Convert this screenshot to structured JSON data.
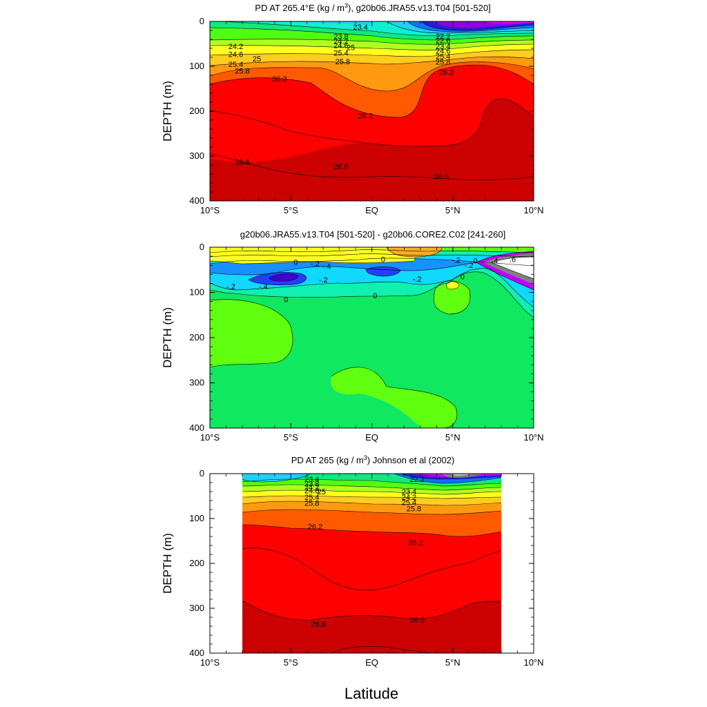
{
  "figure": {
    "xlabel": "Latitude"
  },
  "chart_data": [
    {
      "type": "heatmap",
      "title_main": "PD AT 265.4°E (kg / m",
      "title_sup": "3",
      "title_rest": "), g20b06.JRA55.v13.T04 [501-520]",
      "ylabel": "DEPTH (m)",
      "xlim": [
        -10,
        10
      ],
      "ylim": [
        400,
        0
      ],
      "xticks": [
        "10°S",
        "5°S",
        "EQ",
        "5°N",
        "10°N"
      ],
      "yticks": [
        "0",
        "100",
        "200",
        "300",
        "400"
      ],
      "contour_labels": [
        {
          "text": "23.4",
          "lat": -0.7,
          "depth": 12
        },
        {
          "text": "23.8",
          "lat": -1.9,
          "depth": 33
        },
        {
          "text": "24.2",
          "lat": -1.9,
          "depth": 44
        },
        {
          "text": "24.6",
          "lat": -1.9,
          "depth": 53
        },
        {
          "text": "25",
          "lat": -1.3,
          "depth": 58
        },
        {
          "text": "25.4",
          "lat": -1.9,
          "depth": 70
        },
        {
          "text": "25.8",
          "lat": -1.8,
          "depth": 89
        },
        {
          "text": "24.2",
          "lat": -8.4,
          "depth": 55
        },
        {
          "text": "24.6",
          "lat": -8.4,
          "depth": 73
        },
        {
          "text": "25",
          "lat": -7.1,
          "depth": 83
        },
        {
          "text": "25.4",
          "lat": -8.4,
          "depth": 95
        },
        {
          "text": "25.8",
          "lat": -8.0,
          "depth": 110
        },
        {
          "text": "26.2",
          "lat": -5.7,
          "depth": 128
        },
        {
          "text": "26.2",
          "lat": -0.4,
          "depth": 210
        },
        {
          "text": "26.2",
          "lat": 4.6,
          "depth": 113
        },
        {
          "text": "26.6",
          "lat": -8.0,
          "depth": 313
        },
        {
          "text": "26.6",
          "lat": -1.9,
          "depth": 323
        },
        {
          "text": "26.6",
          "lat": 4.3,
          "depth": 345
        },
        {
          "text": "22.2",
          "lat": 4.4,
          "depth": 33
        },
        {
          "text": "22.6",
          "lat": 4.4,
          "depth": 42
        },
        {
          "text": "23.4",
          "lat": 4.4,
          "depth": 55
        },
        {
          "text": "24.6",
          "lat": 4.4,
          "depth": 65
        },
        {
          "text": "25.4",
          "lat": 4.4,
          "depth": 78
        },
        {
          "text": "25.8",
          "lat": 4.4,
          "depth": 90
        }
      ],
      "density_levels": [
        22.2,
        22.6,
        23.0,
        23.4,
        23.8,
        24.2,
        24.6,
        25.0,
        25.4,
        25.8,
        26.2,
        26.6
      ],
      "fill_colors": [
        "#e000ff",
        "#9000e0",
        "#2020e0",
        "#1070ff",
        "#20d0ff",
        "#10f0d0",
        "#10e880",
        "#50ff10",
        "#b0ff20",
        "#ffff20",
        "#ffcc20",
        "#ff9a10",
        "#ff5a00",
        "#ff0000",
        "#cc0000"
      ]
    },
    {
      "type": "heatmap",
      "title_main": "g20b06.JRA55.v13.T04 [501-520] - g20b06.CORE2.C02 [241-260]",
      "ylabel": "DEPTH (m)",
      "xlim": [
        -10,
        10
      ],
      "ylim": [
        400,
        0
      ],
      "xticks": [
        "10°S",
        "5°S",
        "EQ",
        "5°N",
        "10°N"
      ],
      "yticks": [
        "0",
        "100",
        "200",
        "300",
        "400"
      ],
      "contour_labels": [
        {
          "text": "0",
          "lat": -4.7,
          "depth": 33
        },
        {
          "text": "-.2",
          "lat": -3.5,
          "depth": 36
        },
        {
          "text": "-.4",
          "lat": -2.8,
          "depth": 42
        },
        {
          "text": "0",
          "lat": 0.7,
          "depth": 27
        },
        {
          "text": "-.2",
          "lat": -8.7,
          "depth": 87
        },
        {
          "text": "-.4",
          "lat": -6.7,
          "depth": 87
        },
        {
          "text": "-.2",
          "lat": -3.0,
          "depth": 72
        },
        {
          "text": "0",
          "lat": -5.3,
          "depth": 115
        },
        {
          "text": "0",
          "lat": 0.2,
          "depth": 107
        },
        {
          "text": "-.2",
          "lat": 2.8,
          "depth": 70
        },
        {
          "text": "-.2",
          "lat": 5.2,
          "depth": 28
        },
        {
          "text": "0",
          "lat": 6.4,
          "depth": 30
        },
        {
          "text": "-.2",
          "lat": 6.0,
          "depth": 40
        },
        {
          "text": "0",
          "lat": 5.6,
          "depth": 65
        },
        {
          "text": ".4",
          "lat": 7.6,
          "depth": 30
        },
        {
          "text": ".6",
          "lat": 8.7,
          "depth": 27
        }
      ],
      "difference_levels": [
        -1.0,
        -0.8,
        -0.6,
        -0.4,
        -0.2,
        0,
        0.2,
        0.4,
        0.6
      ],
      "fill_colors": [
        "#ffffff",
        "#808080",
        "#c000ff",
        "#4000d0",
        "#2040ff",
        "#1890ff",
        "#10d8ff",
        "#10f0b0",
        "#10e860",
        "#60ff10",
        "#ffff20",
        "#ffb020"
      ]
    },
    {
      "type": "heatmap",
      "title_main": "PD AT 265 (kg / m",
      "title_sup": "3",
      "title_rest": ") Johnson et al (2002)",
      "ylabel": "DEPTH (m)",
      "xlim": [
        -10,
        10
      ],
      "ylim": [
        400,
        0
      ],
      "data_lat_range": [
        -8,
        8
      ],
      "xticks": [
        "10°S",
        "5°S",
        "EQ",
        "5°N",
        "10°N"
      ],
      "yticks": [
        "0",
        "100",
        "200",
        "300",
        "400"
      ],
      "contour_labels": [
        {
          "text": "23.4",
          "lat": -3.7,
          "depth": 12
        },
        {
          "text": "23.8",
          "lat": -3.7,
          "depth": 22
        },
        {
          "text": "24.2",
          "lat": -3.7,
          "depth": 30
        },
        {
          "text": "24.6",
          "lat": -3.7,
          "depth": 38
        },
        {
          "text": "25",
          "lat": -3.1,
          "depth": 40
        },
        {
          "text": "25.4",
          "lat": -3.7,
          "depth": 52
        },
        {
          "text": "25.8",
          "lat": -3.7,
          "depth": 65
        },
        {
          "text": "26.2",
          "lat": -3.5,
          "depth": 118
        },
        {
          "text": "26.2",
          "lat": 2.7,
          "depth": 153
        },
        {
          "text": "26.6",
          "lat": -3.3,
          "depth": 335
        },
        {
          "text": "26.6",
          "lat": 2.8,
          "depth": 325
        },
        {
          "text": "22.2",
          "lat": 2.8,
          "depth": 12
        },
        {
          "text": "23.4",
          "lat": 2.3,
          "depth": 40
        },
        {
          "text": "24.2",
          "lat": 2.3,
          "depth": 52
        },
        {
          "text": "25.4",
          "lat": 2.3,
          "depth": 64
        },
        {
          "text": "25.8",
          "lat": 2.6,
          "depth": 78
        }
      ],
      "density_levels": [
        21.4,
        22.2,
        22.6,
        23.0,
        23.4,
        23.8,
        24.2,
        24.6,
        25.0,
        25.4,
        25.8,
        26.2,
        26.6
      ],
      "fill_colors": [
        "#808080",
        "#c0c0c0",
        "#e000ff",
        "#9000e0",
        "#2020e0",
        "#1070ff",
        "#20d0ff",
        "#10f0d0",
        "#10e880",
        "#50ff10",
        "#b0ff20",
        "#ffff20",
        "#ffcc20",
        "#ff9a10",
        "#ff5a00",
        "#ff0000",
        "#cc0000"
      ]
    }
  ]
}
